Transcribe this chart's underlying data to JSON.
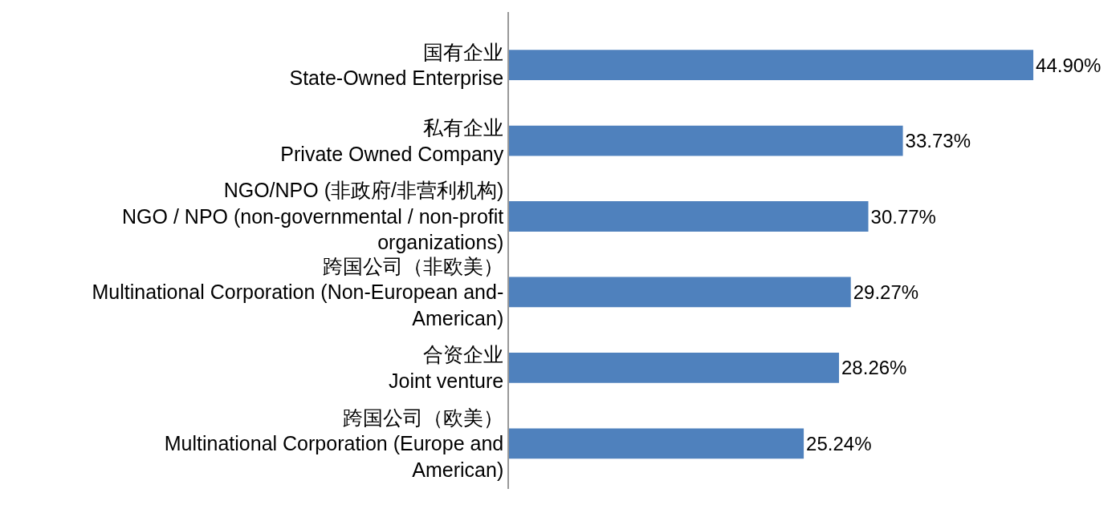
{
  "chart_data": {
    "type": "bar",
    "orientation": "horizontal",
    "categories": [
      "国有企业 State-Owned Enterprise",
      "私有企业 Private Owned Company",
      "NGO/NPO (非政府/非营利机构) NGO / NPO (non-governmental / non-profit organizations)",
      "跨国公司（非欧美） Multinational Corporation (Non-European and-American)",
      "合资企业 Joint venture",
      "跨国公司（欧美） Multinational Corporation (Europe and American)"
    ],
    "values": [
      44.9,
      33.73,
      30.77,
      29.27,
      28.26,
      25.24
    ],
    "value_labels": [
      "44.90%",
      "33.73%",
      "30.77%",
      "29.27%",
      "28.26%",
      "25.24%"
    ],
    "color": "#4f81bd"
  }
}
